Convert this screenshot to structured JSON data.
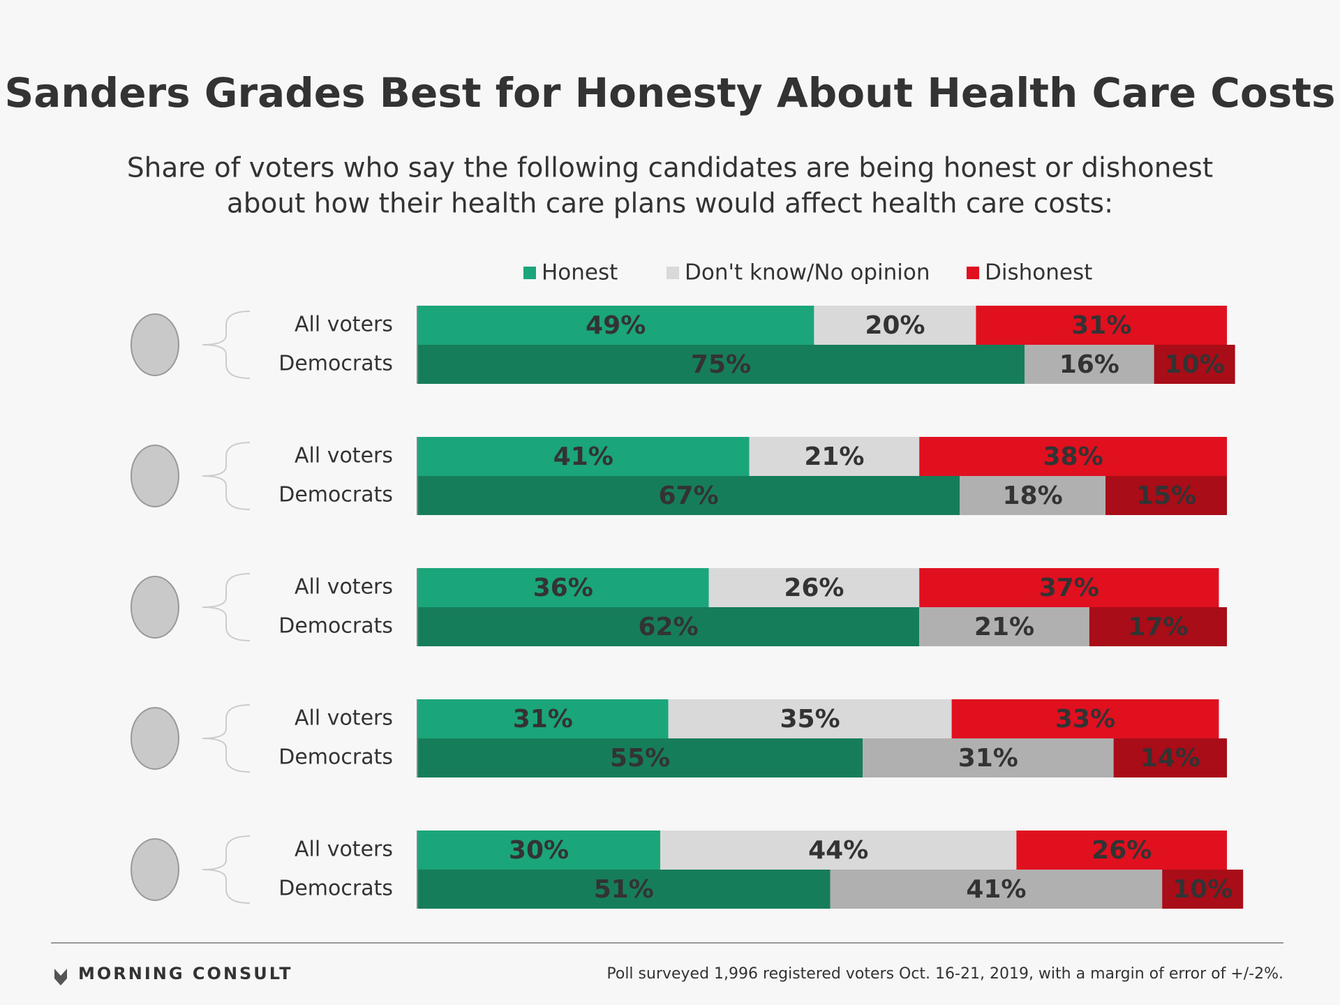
{
  "chart_data": {
    "type": "stacked-bar",
    "title": "Sanders Grades Best for Honesty About Health Care Costs",
    "subtitle": [
      "Share of voters who say the following candidates are being honest or dishonest",
      "about how their health care plans would affect health care costs:"
    ],
    "categories": [
      "All voters",
      "Democrats",
      "All voters",
      "Democrats",
      "All voters",
      "Democrats",
      "All voters",
      "Democrats",
      "All voters",
      "Democrats"
    ],
    "xlim": [
      0,
      100
    ],
    "series": [
      {
        "name": "Honest",
        "color": "#1ba57a",
        "colors": [
          "#1ba57a",
          "#167d5a"
        ],
        "label_colors": [
          "#ffffff",
          "#ffffff"
        ],
        "values": [
          49,
          75,
          41,
          67,
          36,
          62,
          31,
          55,
          30,
          51
        ],
        "value_labels": [
          "49%",
          "75%",
          "41%",
          "67%",
          "36%",
          "62%",
          "31%",
          "55%",
          "30%",
          "51%"
        ]
      },
      {
        "name": "Don't know/No opinion",
        "color": "#d9d9d9",
        "colors": [
          "#d9d9d9",
          "#b0b0b0"
        ],
        "label_colors": [
          "#999999",
          "#333333"
        ],
        "values": [
          20,
          16,
          21,
          18,
          26,
          21,
          35,
          31,
          44,
          41
        ],
        "value_labels": [
          "20%",
          "16%",
          "21%",
          "18%",
          "26%",
          "21%",
          "35%",
          "31%",
          "44%",
          "41%"
        ]
      },
      {
        "name": "Dishonest",
        "color": "#e0101f",
        "colors": [
          "#e0101f",
          "#a80d18"
        ],
        "label_colors": [
          "#ffffff",
          "#ffffff"
        ],
        "values": [
          31,
          10,
          38,
          15,
          37,
          17,
          33,
          14,
          26,
          10
        ],
        "value_labels": [
          "31%",
          "10%",
          "38%",
          "15%",
          "37%",
          "17%",
          "33%",
          "14%",
          "26%",
          "10%"
        ]
      }
    ]
  },
  "footer": {
    "brand": "MORNING CONSULT",
    "note": "Poll surveyed 1,996 registered voters Oct. 16-21, 2019, with a margin of error of +/-2%."
  }
}
